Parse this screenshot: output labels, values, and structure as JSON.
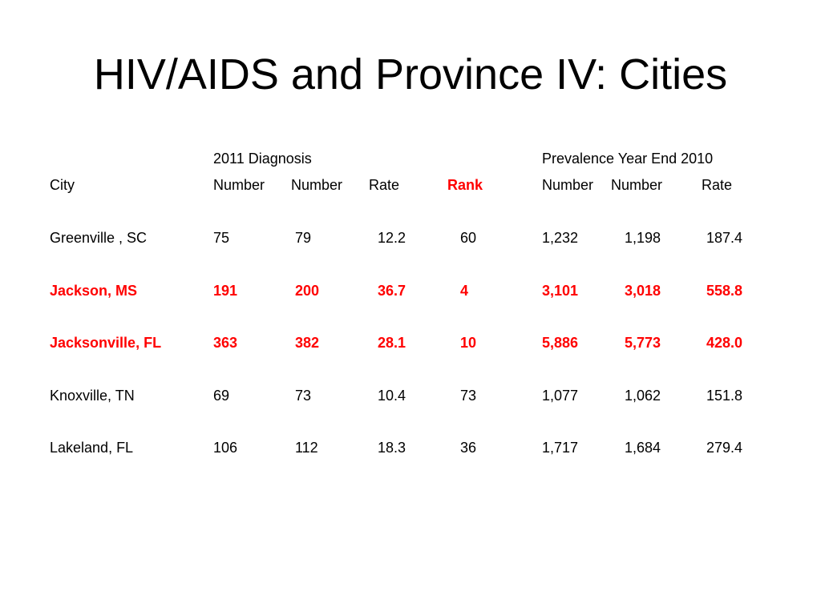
{
  "slide": {
    "title": "HIV/AIDS and Province IV: Cities"
  },
  "table": {
    "group_headers": {
      "diagnosis": "2011 Diagnosis",
      "prevalence": "Prevalence Year End 2010"
    },
    "column_headers": {
      "city": "City",
      "dx_number_1": "Number",
      "dx_number_2": "Number",
      "dx_rate": "Rate",
      "rank": "Rank",
      "prev_number_1": "Number",
      "prev_number_2": "Number",
      "prev_rate": "Rate"
    },
    "rows": [
      {
        "city": "Greenville  , SC",
        "dx_number_1": "75",
        "dx_number_2": "79",
        "dx_rate": "12.2",
        "rank": "60",
        "prev_number_1": "1,232",
        "prev_number_2": "1,198",
        "prev_rate": "187.4",
        "highlighted": false
      },
      {
        "city": "Jackson, MS",
        "dx_number_1": "191",
        "dx_number_2": "200",
        "dx_rate": "36.7",
        "rank": "4",
        "prev_number_1": "3,101",
        "prev_number_2": "3,018",
        "prev_rate": "558.8",
        "highlighted": true
      },
      {
        "city": "Jacksonville, FL",
        "dx_number_1": "363",
        "dx_number_2": "382",
        "dx_rate": "28.1",
        "rank": "10",
        "prev_number_1": "5,886",
        "prev_number_2": "5,773",
        "prev_rate": "428.0",
        "highlighted": true
      },
      {
        "city": "Knoxville, TN",
        "dx_number_1": "69",
        "dx_number_2": "73",
        "dx_rate": "10.4",
        "rank": "73",
        "prev_number_1": "1,077",
        "prev_number_2": "1,062",
        "prev_rate": "151.8",
        "highlighted": false
      },
      {
        "city": "Lakeland, FL",
        "dx_number_1": "106",
        "dx_number_2": "112",
        "dx_rate": "18.3",
        "rank": "36",
        "prev_number_1": "1,717",
        "prev_number_2": "1,684",
        "prev_rate": "279.4",
        "highlighted": false
      }
    ]
  },
  "colors": {
    "highlight": "#ff0000",
    "text": "#000000",
    "background": "#ffffff"
  }
}
